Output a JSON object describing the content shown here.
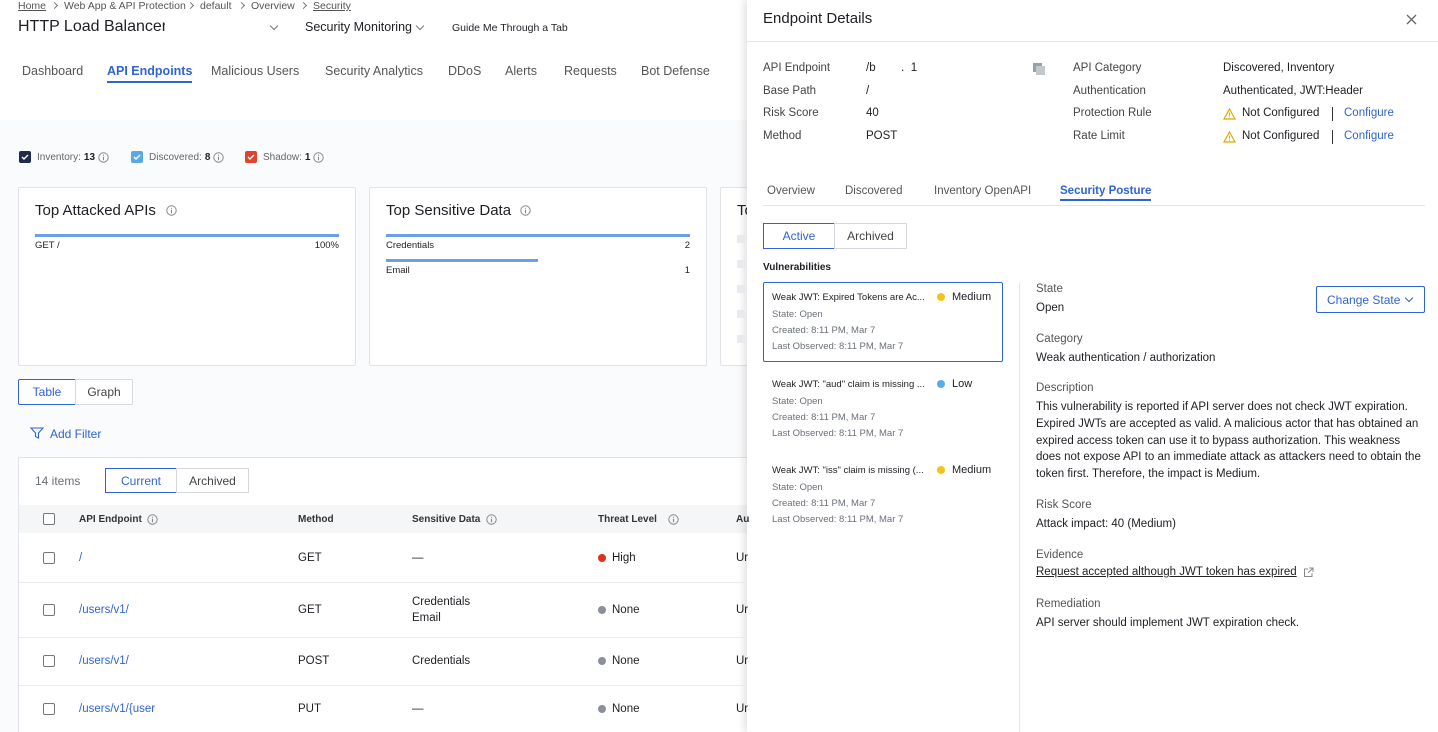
{
  "breadcrumb": [
    "Home",
    "Web App & API Protection",
    "default",
    "Overview",
    "Security"
  ],
  "header": {
    "title": "HTTP Load Balancer:",
    "monitoring": "Security Monitoring",
    "guide": "Guide Me Through a Tab"
  },
  "tabs": [
    "Dashboard",
    "API Endpoints",
    "Malicious Users",
    "Security Analytics",
    "DDoS",
    "Alerts",
    "Requests",
    "Bot Defense"
  ],
  "filters": [
    {
      "label": "Inventory:",
      "count": "13",
      "color": "#1f2a4d"
    },
    {
      "label": "Discovered:",
      "count": "8",
      "color": "#5aa9e6"
    },
    {
      "label": "Shadow:",
      "count": "1",
      "color": "#e0442b"
    }
  ],
  "cards": {
    "top_attacked": {
      "title": "Top Attacked APIs",
      "rows": [
        {
          "label": "GET /",
          "value": 100,
          "value_label": "100%"
        }
      ]
    },
    "top_sensitive": {
      "title": "Top Sensitive Data",
      "rows": [
        {
          "label": "Credentials",
          "value": 2
        },
        {
          "label": "Email",
          "value": 1
        }
      ]
    },
    "third": {
      "title": "To"
    }
  },
  "view_toggle": [
    "Table",
    "Graph"
  ],
  "add_filter": "Add Filter",
  "table": {
    "count": "14 items",
    "toggle": [
      "Current",
      "Archived"
    ],
    "columns": [
      "API Endpoint",
      "Method",
      "Sensitive Data",
      "Threat Level",
      "Au"
    ],
    "rows": [
      {
        "endpoint": "/",
        "method": "GET",
        "sensitive": [
          "—"
        ],
        "threat": "High",
        "threat_color": "#e0301e",
        "auth": "Ur"
      },
      {
        "endpoint": "/users/v1/",
        "method": "GET",
        "sensitive": [
          "Credentials",
          "Email"
        ],
        "threat": "None",
        "threat_color": "#8a8f99",
        "auth": "Ur"
      },
      {
        "endpoint": "/users/v1/",
        "method": "POST",
        "sensitive": [
          "Credentials"
        ],
        "threat": "None",
        "threat_color": "#8a8f99",
        "auth": "Ur"
      },
      {
        "endpoint": "/users/v1/{user",
        "method": "PUT",
        "sensitive": [
          "—"
        ],
        "threat": "None",
        "threat_color": "#8a8f99",
        "auth": "Ur"
      }
    ]
  },
  "drawer": {
    "title": "Endpoint Details",
    "details_left": [
      {
        "label": "API Endpoint",
        "value": "/b        .  1"
      },
      {
        "label": "Base Path",
        "value": "/"
      },
      {
        "label": "Risk Score",
        "value": "40"
      },
      {
        "label": "Method",
        "value": "POST"
      }
    ],
    "details_right": [
      {
        "label": "API Category",
        "value": "Discovered, Inventory"
      },
      {
        "label": "Authentication",
        "value": "Authenticated, JWT:Header"
      },
      {
        "label": "Protection Rule",
        "value": "Not Configured",
        "action": "Configure"
      },
      {
        "label": "Rate Limit",
        "value": "Not Configured",
        "action": "Configure"
      }
    ],
    "tabs": [
      "Overview",
      "Discovered",
      "Inventory OpenAPI",
      "Security Posture"
    ],
    "toggle": [
      "Active",
      "Archived"
    ],
    "vuln_heading": "Vulnerabilities",
    "vulns": [
      {
        "title": "Weak JWT: Expired Tokens are Ac...",
        "severity": "Medium",
        "color": "#f5c31c",
        "state": "State: Open",
        "created": "Created: 8:11 PM, Mar 7",
        "observed": "Last Observed: 8:11 PM, Mar 7"
      },
      {
        "title": "Weak JWT: \"aud\" claim is missing ...",
        "severity": "Low",
        "color": "#5aaee8",
        "state": "State: Open",
        "created": "Created: 8:11 PM, Mar 7",
        "observed": "Last Observed: 8:11 PM, Mar 7"
      },
      {
        "title": "Weak JWT: \"iss\" claim is missing (...",
        "severity": "Medium",
        "color": "#f5c31c",
        "state": "State: Open",
        "created": "Created: 8:11 PM, Mar 7",
        "observed": "Last Observed: 8:11 PM, Mar 7"
      }
    ],
    "change_state": "Change State",
    "sections": [
      {
        "label": "State",
        "text": "Open"
      },
      {
        "label": "Category",
        "text": "Weak authentication / authorization"
      },
      {
        "label": "Description",
        "text": "This vulnerability is reported if API server does not check JWT expiration. Expired JWTs are accepted as valid. A malicious actor that has obtained an expired access token can use it to bypass authorization. This weakness does not expose API to an immediate attack as attackers need to obtain the token first. Therefore, the impact is Medium."
      },
      {
        "label": "Risk Score",
        "text": "Attack impact: 40 (Medium)"
      },
      {
        "label": "Evidence",
        "link": "Request accepted although JWT token has expired"
      },
      {
        "label": "Remediation",
        "text": "API server should implement JWT expiration check."
      }
    ]
  }
}
